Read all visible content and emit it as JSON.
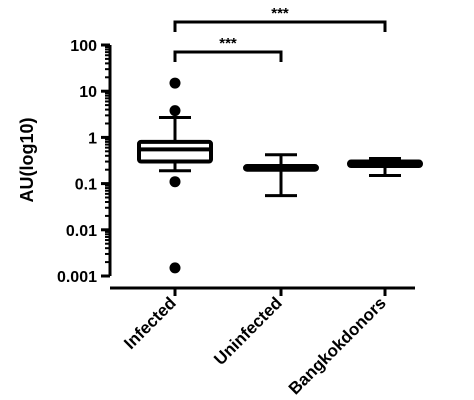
{
  "chart_data": {
    "type": "boxplot",
    "title": "",
    "xlabel": "",
    "ylabel": "AU(log10)",
    "yscale": "log",
    "ylim": [
      0.001,
      100
    ],
    "yticks": [
      0.001,
      0.01,
      0.1,
      1,
      10,
      100
    ],
    "ytick_labels": [
      "0.001",
      "0.01",
      "0.1",
      "1",
      "10",
      "100"
    ],
    "categories": [
      "Infected",
      "Uninfected",
      "Bangkokdonors"
    ],
    "boxes": [
      {
        "category": "Infected",
        "whisker_low": 0.19,
        "q1": 0.3,
        "median": 0.55,
        "q3": 0.8,
        "whisker_high": 2.7,
        "outliers": [
          15,
          3.8,
          0.11,
          0.0015
        ]
      },
      {
        "category": "Uninfected",
        "whisker_low": 0.055,
        "q1": 0.2,
        "median": 0.22,
        "q3": 0.24,
        "whisker_high": 0.42,
        "outliers": []
      },
      {
        "category": "Bangkokdonors",
        "whisker_low": 0.15,
        "q1": 0.24,
        "median": 0.27,
        "q3": 0.3,
        "whisker_high": 0.35,
        "outliers": []
      }
    ],
    "significance": [
      {
        "from": "Infected",
        "to": "Uninfected",
        "label": "***"
      },
      {
        "from": "Infected",
        "to": "Bangkokdonors",
        "label": "***"
      }
    ],
    "grid": false,
    "legend": "none"
  }
}
